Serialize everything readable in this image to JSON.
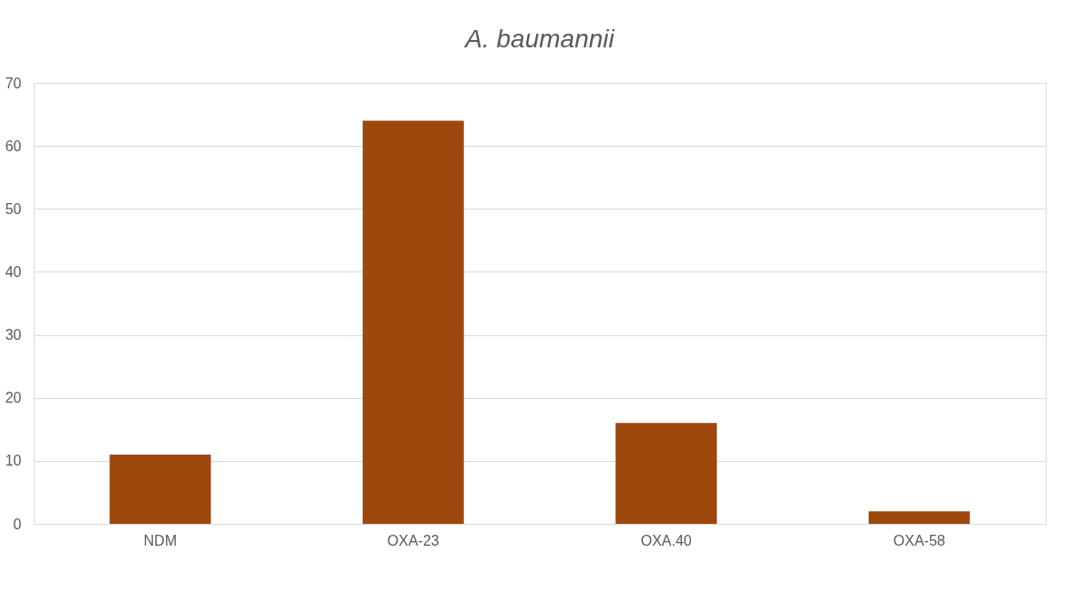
{
  "chart_data": {
    "type": "bar",
    "title": "A. baumannii",
    "categories": [
      "NDM",
      "OXA-23",
      "OXA.40",
      "OXA-58"
    ],
    "values": [
      11,
      64,
      16,
      2
    ],
    "color": "#9e480e",
    "ylim": [
      0,
      70
    ],
    "yticks": [
      0,
      10,
      20,
      30,
      40,
      50,
      60,
      70
    ],
    "grid": "y"
  }
}
